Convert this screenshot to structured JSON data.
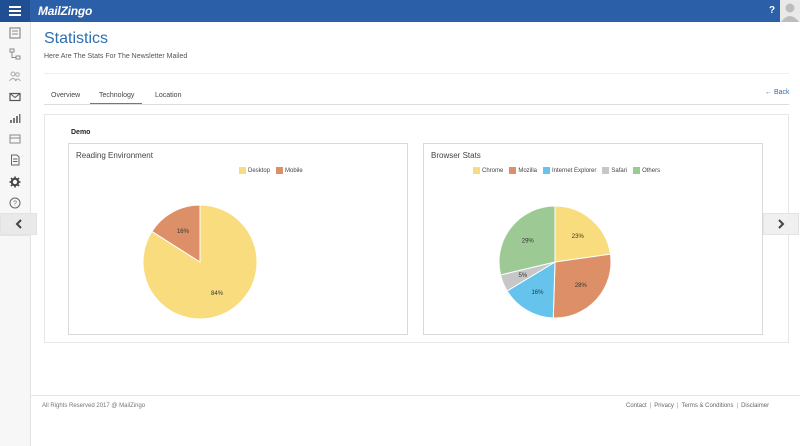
{
  "header": {
    "logo_text": "MailZingo",
    "help_label": "?",
    "brand_color": "#2b5fa8"
  },
  "sidebar": {
    "items": [
      {
        "icon": "newsletter-icon"
      },
      {
        "icon": "sitemap-icon"
      },
      {
        "icon": "users-icon"
      },
      {
        "icon": "envelope-icon"
      },
      {
        "icon": "signal-bars-icon"
      },
      {
        "icon": "card-icon"
      },
      {
        "icon": "document-icon"
      },
      {
        "icon": "gear-icon"
      },
      {
        "icon": "help-icon"
      }
    ],
    "collapse_icon": "chevron-left-icon"
  },
  "page": {
    "title": "Statistics",
    "subtitle": "Here Are The Stats For The Newsletter Mailed"
  },
  "tabs": [
    {
      "label": "Overview",
      "active": false
    },
    {
      "label": "Technology",
      "active": true
    },
    {
      "label": "Location",
      "active": false
    }
  ],
  "back_label": "Back",
  "section_label": "Demo",
  "cards": {
    "reading": {
      "title": "Reading Environment"
    },
    "browser": {
      "title": "Browser Stats"
    }
  },
  "chart_data": [
    {
      "type": "pie",
      "title": "Reading Environment",
      "categories": [
        "Desktop",
        "Mobile"
      ],
      "values": [
        84,
        16
      ],
      "labels": [
        "84%",
        "16%"
      ],
      "colors": [
        "#f9dc7d",
        "#dd9068"
      ]
    },
    {
      "type": "pie",
      "title": "Browser Stats",
      "categories": [
        "Chrome",
        "Mozilla",
        "Internet Explorer",
        "Safari",
        "Others"
      ],
      "values": [
        23,
        28,
        16,
        5,
        29
      ],
      "labels": [
        "23%",
        "28%",
        "16%",
        "5%",
        "29%"
      ],
      "colors": [
        "#f9dc7d",
        "#dd9068",
        "#66c3ec",
        "#c7c7c7",
        "#9dc995"
      ]
    }
  ],
  "footer": {
    "copyright": "All Rights Reserved 2017 @ MailZingo",
    "links": [
      "Contact",
      "Privacy",
      "Terms & Conditions",
      "Disclaimer"
    ],
    "separator": "|"
  }
}
